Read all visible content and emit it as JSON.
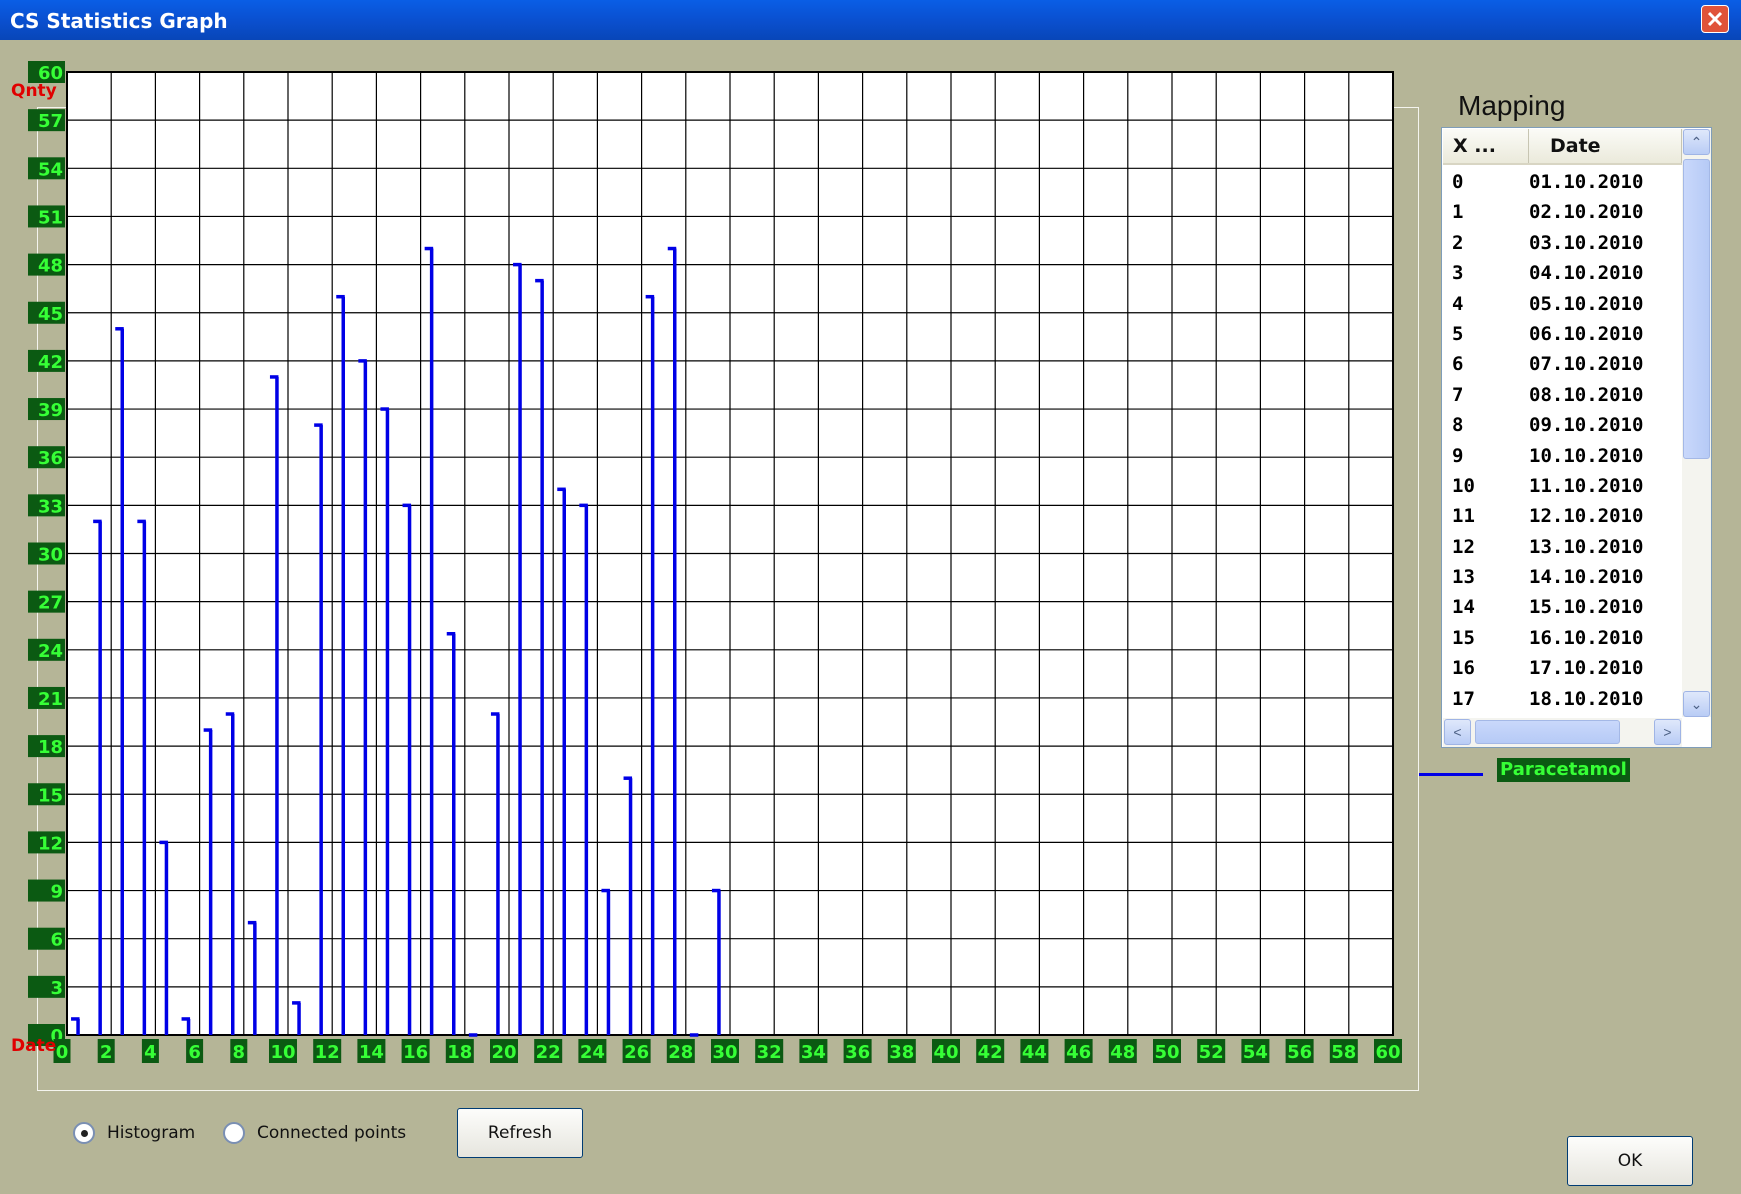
{
  "window": {
    "title": "CS Statistics Graph",
    "close_glyph": "✕"
  },
  "chart_data": {
    "type": "bar",
    "style": "histogram-stems",
    "ylabel": "Qnty",
    "xlabel": "Date",
    "y_ticks": [
      0,
      3,
      6,
      9,
      12,
      15,
      18,
      21,
      24,
      27,
      30,
      33,
      36,
      39,
      42,
      45,
      48,
      51,
      54,
      57,
      60
    ],
    "x_ticks": [
      0,
      2,
      4,
      6,
      8,
      10,
      12,
      14,
      16,
      18,
      20,
      22,
      24,
      26,
      28,
      30,
      32,
      34,
      36,
      38,
      40,
      42,
      44,
      46,
      48,
      50,
      52,
      54,
      56,
      58,
      60
    ],
    "xlim": [
      0,
      60
    ],
    "ylim": [
      0,
      60
    ],
    "grid": true,
    "series": [
      {
        "name": "Paracetamol",
        "color": "#0000e6",
        "x": [
          0,
          1,
          2,
          3,
          4,
          5,
          6,
          7,
          8,
          9,
          10,
          11,
          12,
          13,
          14,
          15,
          16,
          17,
          18,
          19,
          20,
          21,
          22,
          23,
          24,
          25,
          26,
          27,
          28,
          29
        ],
        "values": [
          1,
          32,
          44,
          32,
          12,
          1,
          19,
          20,
          7,
          41,
          2,
          38,
          46,
          42,
          39,
          33,
          49,
          25,
          0,
          20,
          48,
          47,
          34,
          33,
          9,
          16,
          46,
          49,
          0,
          9
        ]
      }
    ]
  },
  "mapping": {
    "title": "Mapping",
    "columns": [
      "X ...",
      "Date"
    ],
    "rows": [
      [
        "0",
        "01.10.2010"
      ],
      [
        "1",
        "02.10.2010"
      ],
      [
        "2",
        "03.10.2010"
      ],
      [
        "3",
        "04.10.2010"
      ],
      [
        "4",
        "05.10.2010"
      ],
      [
        "5",
        "06.10.2010"
      ],
      [
        "6",
        "07.10.2010"
      ],
      [
        "7",
        "08.10.2010"
      ],
      [
        "8",
        "09.10.2010"
      ],
      [
        "9",
        "10.10.2010"
      ],
      [
        "10",
        "11.10.2010"
      ],
      [
        "11",
        "12.10.2010"
      ],
      [
        "12",
        "13.10.2010"
      ],
      [
        "13",
        "14.10.2010"
      ],
      [
        "14",
        "15.10.2010"
      ],
      [
        "15",
        "16.10.2010"
      ],
      [
        "16",
        "17.10.2010"
      ],
      [
        "17",
        "18.10.2010"
      ]
    ],
    "scroll_up": "⌃",
    "scroll_down": "⌄",
    "scroll_left": "<",
    "scroll_right": ">"
  },
  "legend": {
    "label": "Paracetamol",
    "color": "#0000e6"
  },
  "controls": {
    "histogram_label": "Histogram",
    "connected_label": "Connected points",
    "selected_mode": "Histogram",
    "refresh_label": "Refresh",
    "ok_label": "OK"
  }
}
